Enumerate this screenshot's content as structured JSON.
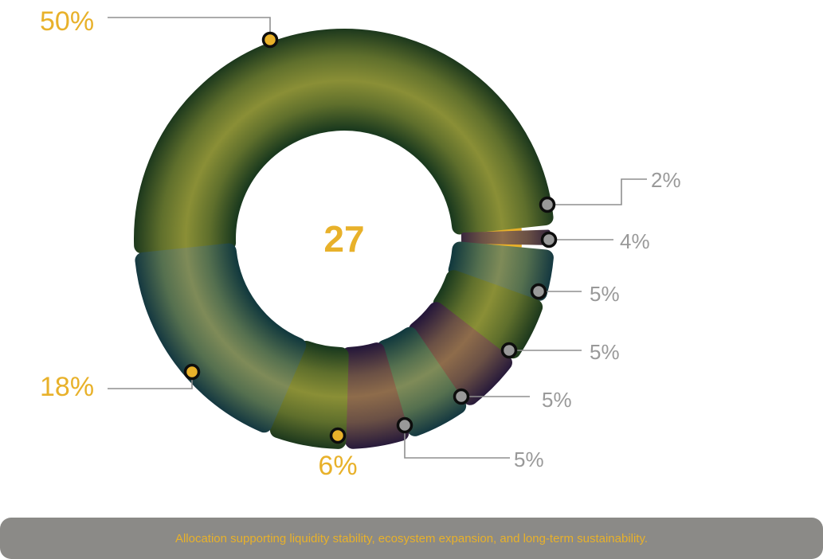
{
  "chart_data": {
    "type": "pie",
    "variant": "donut",
    "center_label": "27",
    "slices": [
      {
        "label": "50%",
        "value": 50,
        "color_theme": "green",
        "marker_color": "#e8b12a",
        "label_color": "#e8b12a"
      },
      {
        "label": "2%",
        "value": 2,
        "color_theme": "purple",
        "marker_color": "#999999",
        "label_color": "#999999"
      },
      {
        "label": "4%",
        "value": 4,
        "color_theme": "teal",
        "marker_color": "#999999",
        "label_color": "#999999"
      },
      {
        "label": "5%",
        "value": 5,
        "color_theme": "green",
        "marker_color": "#999999",
        "label_color": "#999999"
      },
      {
        "label": "5%",
        "value": 5,
        "color_theme": "purple",
        "marker_color": "#999999",
        "label_color": "#999999"
      },
      {
        "label": "5%",
        "value": 5,
        "color_theme": "teal",
        "marker_color": "#999999",
        "label_color": "#999999"
      },
      {
        "label": "5%",
        "value": 5,
        "color_theme": "purple",
        "marker_color": "#999999",
        "label_color": "#999999"
      },
      {
        "label": "6%",
        "value": 6,
        "color_theme": "green",
        "marker_color": "#e8b12a",
        "label_color": "#e8b12a"
      },
      {
        "label": "18%",
        "value": 18,
        "color_theme": "teal",
        "marker_color": "#e8b12a",
        "label_color": "#e8b12a"
      }
    ],
    "ring_accent_color": "#e8b12a",
    "legend": "none"
  },
  "footer": {
    "caption": "Allocation supporting liquidity stability, ecosystem expansion, and long-term sustainability."
  }
}
